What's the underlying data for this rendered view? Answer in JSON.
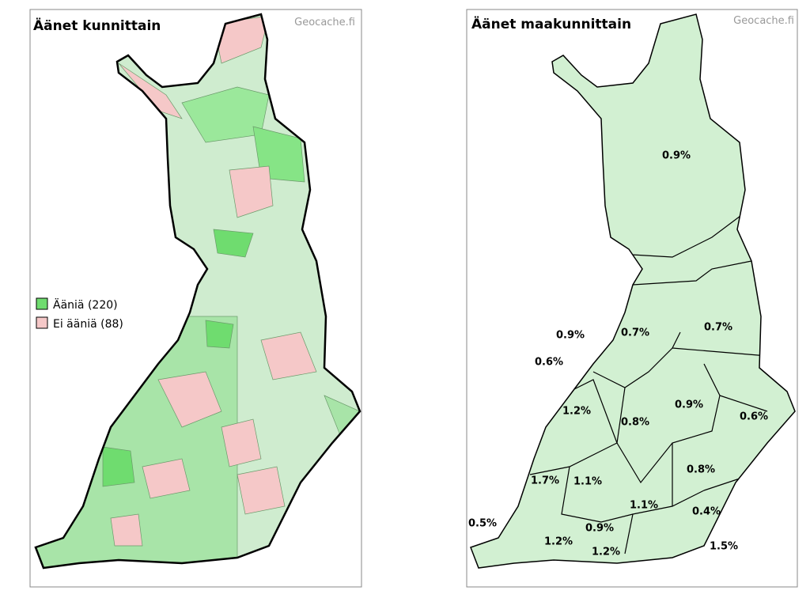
{
  "left_map": {
    "title": "Äänet kunnittain",
    "credit": "Geocache.fi",
    "legend": [
      "Ääniä (220)",
      "Ei ääniä (88)"
    ]
  },
  "right_map": {
    "title": "Äänet maakunnittain",
    "credit": "Geocache.fi",
    "labels": [
      "0.9%",
      "0.9%",
      "0.7%",
      "0.7%",
      "0.6%",
      "1.2%",
      "0.8%",
      "0.9%",
      "0.6%",
      "0.8%",
      "1.7%",
      "1.1%",
      "1.1%",
      "0.4%",
      "0.5%",
      "0.9%",
      "1.2%",
      "1.2%",
      "1.5%"
    ]
  }
}
